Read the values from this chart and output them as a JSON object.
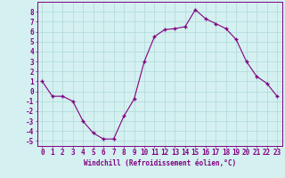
{
  "x": [
    0,
    1,
    2,
    3,
    4,
    5,
    6,
    7,
    8,
    9,
    10,
    11,
    12,
    13,
    14,
    15,
    16,
    17,
    18,
    19,
    20,
    21,
    22,
    23
  ],
  "y": [
    1.0,
    -0.5,
    -0.5,
    -1.0,
    -3.0,
    -4.2,
    -4.8,
    -4.8,
    -2.5,
    -0.8,
    3.0,
    5.5,
    6.2,
    6.3,
    6.5,
    8.2,
    7.3,
    6.8,
    6.3,
    5.2,
    3.0,
    1.5,
    0.8,
    -0.5
  ],
  "line_color": "#800080",
  "marker": "+",
  "marker_size": 3.5,
  "bg_color": "#d4f0f0",
  "grid_color": "#b0d8d8",
  "axis_color": "#800080",
  "tick_color": "#800080",
  "xlabel": "Windchill (Refroidissement éolien,°C)",
  "ylim": [
    -5.5,
    9.0
  ],
  "xlim": [
    -0.5,
    23.5
  ],
  "yticks": [
    -5,
    -4,
    -3,
    -2,
    -1,
    0,
    1,
    2,
    3,
    4,
    5,
    6,
    7,
    8
  ],
  "xticks": [
    0,
    1,
    2,
    3,
    4,
    5,
    6,
    7,
    8,
    9,
    10,
    11,
    12,
    13,
    14,
    15,
    16,
    17,
    18,
    19,
    20,
    21,
    22,
    23
  ],
  "label_fontsize": 5.5,
  "tick_fontsize": 5.5
}
